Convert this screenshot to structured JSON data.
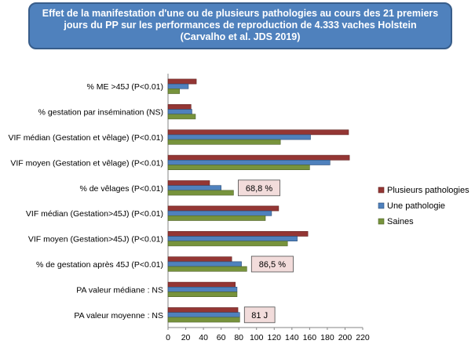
{
  "title": {
    "line1": "Effet de la manifestation d'une ou de plusieurs pathologies au cours des 21 premiers",
    "line2": "jours du PP sur les performances de reproduction de 4.333 vaches  Holstein",
    "line3": "(Carvalho et al. JDS 2019)"
  },
  "colors": {
    "title_bg": "#4f81bd",
    "plusieurs": "#943634",
    "une": "#4f81bd",
    "saines": "#77933c",
    "annotation_bg": "#f2dcdb"
  },
  "chart_data": {
    "type": "bar",
    "orientation": "horizontal",
    "categories": [
      "% ME >45J (P<0.01)",
      "% gestation par insémination (NS)",
      "VIF médian (Gestation et vêlage) (P<0.01)",
      "VIF moyen (Gestation et vêlage) (P<0.01)",
      "% de vêlages (P<0.01)",
      "VIF médian (Gestation>45J) (P<0.01)",
      "VIF moyen (Gestation>45J) (P<0.01)",
      "% de gestation après 45J (P<0.01)",
      "PA valeur médiane : NS",
      "PA valeur moyenne : NS"
    ],
    "series": [
      {
        "name": "Plusieurs pathologies",
        "values": [
          32,
          26,
          204,
          205,
          47,
          125,
          158,
          72,
          76,
          79
        ]
      },
      {
        "name": "Une pathologie",
        "values": [
          23,
          27,
          161,
          183,
          60,
          117,
          146,
          83,
          78,
          81
        ]
      },
      {
        "name": "Saines",
        "values": [
          13,
          31,
          127,
          160,
          74,
          110,
          135,
          89,
          78,
          81
        ]
      }
    ],
    "xlim": [
      0,
      220
    ],
    "xticks": [
      0,
      20,
      40,
      60,
      80,
      100,
      120,
      140,
      160,
      180,
      200,
      220
    ],
    "tick_labels": [
      "0",
      "20",
      "40",
      "60",
      "80",
      "100",
      "120",
      "140",
      "160",
      "180",
      "200",
      "220"
    ],
    "legend_position": "right",
    "annotations": [
      {
        "category_index": 4,
        "text": "68,8 %"
      },
      {
        "category_index": 7,
        "text": "86,5 %"
      },
      {
        "category_index": 9,
        "text": "81 J"
      }
    ]
  }
}
